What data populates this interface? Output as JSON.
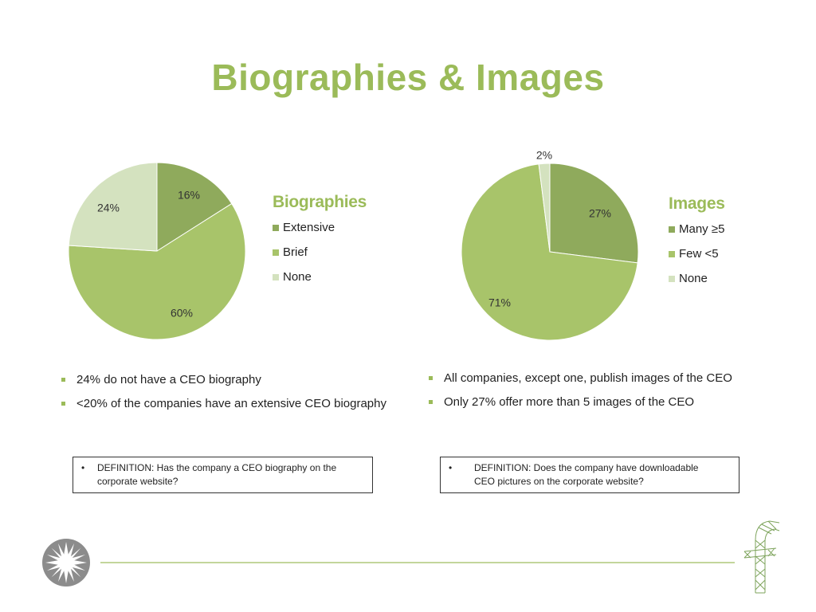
{
  "title": "Biographies & Images",
  "colors": {
    "accent": "#9bbb59",
    "dark_green": "#8faa5c",
    "mid_green": "#a8c46a",
    "light_green": "#d4e2bf",
    "footer_line": "#c3d69b"
  },
  "chart_data": [
    {
      "type": "pie",
      "title": "Biographies",
      "categories": [
        "Extensive",
        "Brief",
        "None"
      ],
      "values": [
        16,
        60,
        24
      ],
      "colors": [
        "#8faa5c",
        "#a8c46a",
        "#d4e2bf"
      ],
      "data_labels": [
        "16%",
        "60%",
        "24%"
      ],
      "legend": "right"
    },
    {
      "type": "pie",
      "title": "Images",
      "categories": [
        "Many ≥5",
        "Few <5",
        "None"
      ],
      "values": [
        27,
        71,
        2
      ],
      "colors": [
        "#8faa5c",
        "#a8c46a",
        "#d4e2bf"
      ],
      "data_labels": [
        "27%",
        "71%",
        "2%"
      ],
      "legend": "right"
    }
  ],
  "bullets_left": [
    "24% do not have a CEO biography",
    "<20% of the companies have an extensive CEO biography"
  ],
  "bullets_right": [
    "All companies, except one, publish images of the CEO",
    "Only 27% offer more than 5 images of the CEO"
  ],
  "definition_left": {
    "bullet": "•",
    "line1": "DEFINITION: Has the company a CEO biography on the",
    "line2": "corporate website?"
  },
  "definition_right": {
    "bullet": "•",
    "line1": "DEFINITION: Does the company have downloadable",
    "line2": "CEO pictures on the corporate website?"
  },
  "icons": {
    "left_logo": "sunburst-logo-icon",
    "right_logo": "wireframe-letter-f-logo-icon"
  }
}
